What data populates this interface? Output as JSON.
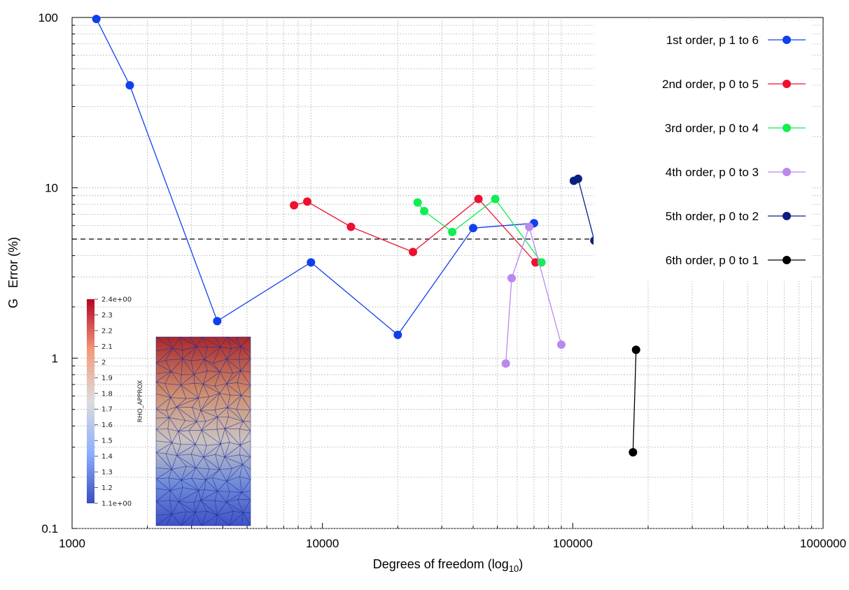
{
  "chart_data": {
    "type": "line",
    "xlabel_main": "Degrees of freedom (log",
    "xlabel_sub": "10",
    "xlabel_tail": ")",
    "ylabel": "G   Error (%)",
    "x_scale": "log",
    "y_scale": "log",
    "xlim": [
      1000,
      1000000
    ],
    "ylim": [
      0.1,
      100
    ],
    "x_ticks": [
      {
        "value": 1000,
        "label": "1000"
      },
      {
        "value": 10000,
        "label": "10000"
      },
      {
        "value": 100000,
        "label": "100000"
      },
      {
        "value": 1000000,
        "label": "1000000"
      }
    ],
    "y_ticks": [
      {
        "value": 100,
        "label": "100"
      },
      {
        "value": 10,
        "label": "10"
      },
      {
        "value": 1,
        "label": "1"
      },
      {
        "value": 0.1,
        "label": "0.1"
      }
    ],
    "grid": true,
    "legend_position": "top-right",
    "reference_line": {
      "y": 5,
      "style": "dashed",
      "color": "#000000"
    },
    "series": [
      {
        "name": "1st order, p 1 to 6",
        "color": "#1040ee",
        "points": [
          [
            1250,
            98
          ],
          [
            1700,
            40
          ],
          [
            3800,
            1.65
          ],
          [
            9000,
            3.65
          ],
          [
            20000,
            1.37
          ],
          [
            40000,
            5.8
          ],
          [
            70000,
            6.2
          ]
        ]
      },
      {
        "name": "2nd order, p 0 to 5",
        "color": "#ee1030",
        "points": [
          [
            7700,
            7.9
          ],
          [
            8700,
            8.3
          ],
          [
            13000,
            5.9
          ],
          [
            23000,
            4.2
          ],
          [
            42000,
            8.6
          ],
          [
            71000,
            3.65
          ]
        ]
      },
      {
        "name": "3rd order, p 0 to 4",
        "color": "#10ee50",
        "points": [
          [
            24000,
            8.2
          ],
          [
            25500,
            7.3
          ],
          [
            33000,
            5.5
          ],
          [
            49000,
            8.6
          ],
          [
            75000,
            3.65
          ]
        ]
      },
      {
        "name": "4th order, p 0 to 3",
        "color": "#bb88ee",
        "points": [
          [
            54000,
            0.93
          ],
          [
            57000,
            2.95
          ],
          [
            67000,
            5.9
          ],
          [
            90000,
            1.2
          ]
        ]
      },
      {
        "name": "5th order, p 0 to 2",
        "color": "#0a2080",
        "points": [
          [
            101000,
            11.0
          ],
          [
            105000,
            11.3
          ],
          [
            122000,
            4.9
          ]
        ]
      },
      {
        "name": "6th order, p 0 to 1",
        "color": "#000000",
        "points": [
          [
            174000,
            0.28
          ],
          [
            179000,
            1.12
          ]
        ]
      }
    ],
    "inset": {
      "colorbar_title": "RHO_APPROX",
      "colorbar_labels": [
        "2.4e+00",
        "2.3",
        "2.2",
        "2.1",
        "2",
        "1.9",
        "1.8",
        "1.7",
        "1.6",
        "1.5",
        "1.4",
        "1.3",
        "1.2",
        "1.1e+00"
      ],
      "colorbar_values": [
        2.4,
        2.3,
        2.2,
        2.1,
        2.0,
        1.9,
        1.8,
        1.7,
        1.6,
        1.5,
        1.4,
        1.3,
        1.2,
        1.1
      ],
      "colormap": [
        "#3b4cc0",
        "#8db0fe",
        "#dddcdc",
        "#f49a7b",
        "#b40426"
      ]
    }
  }
}
